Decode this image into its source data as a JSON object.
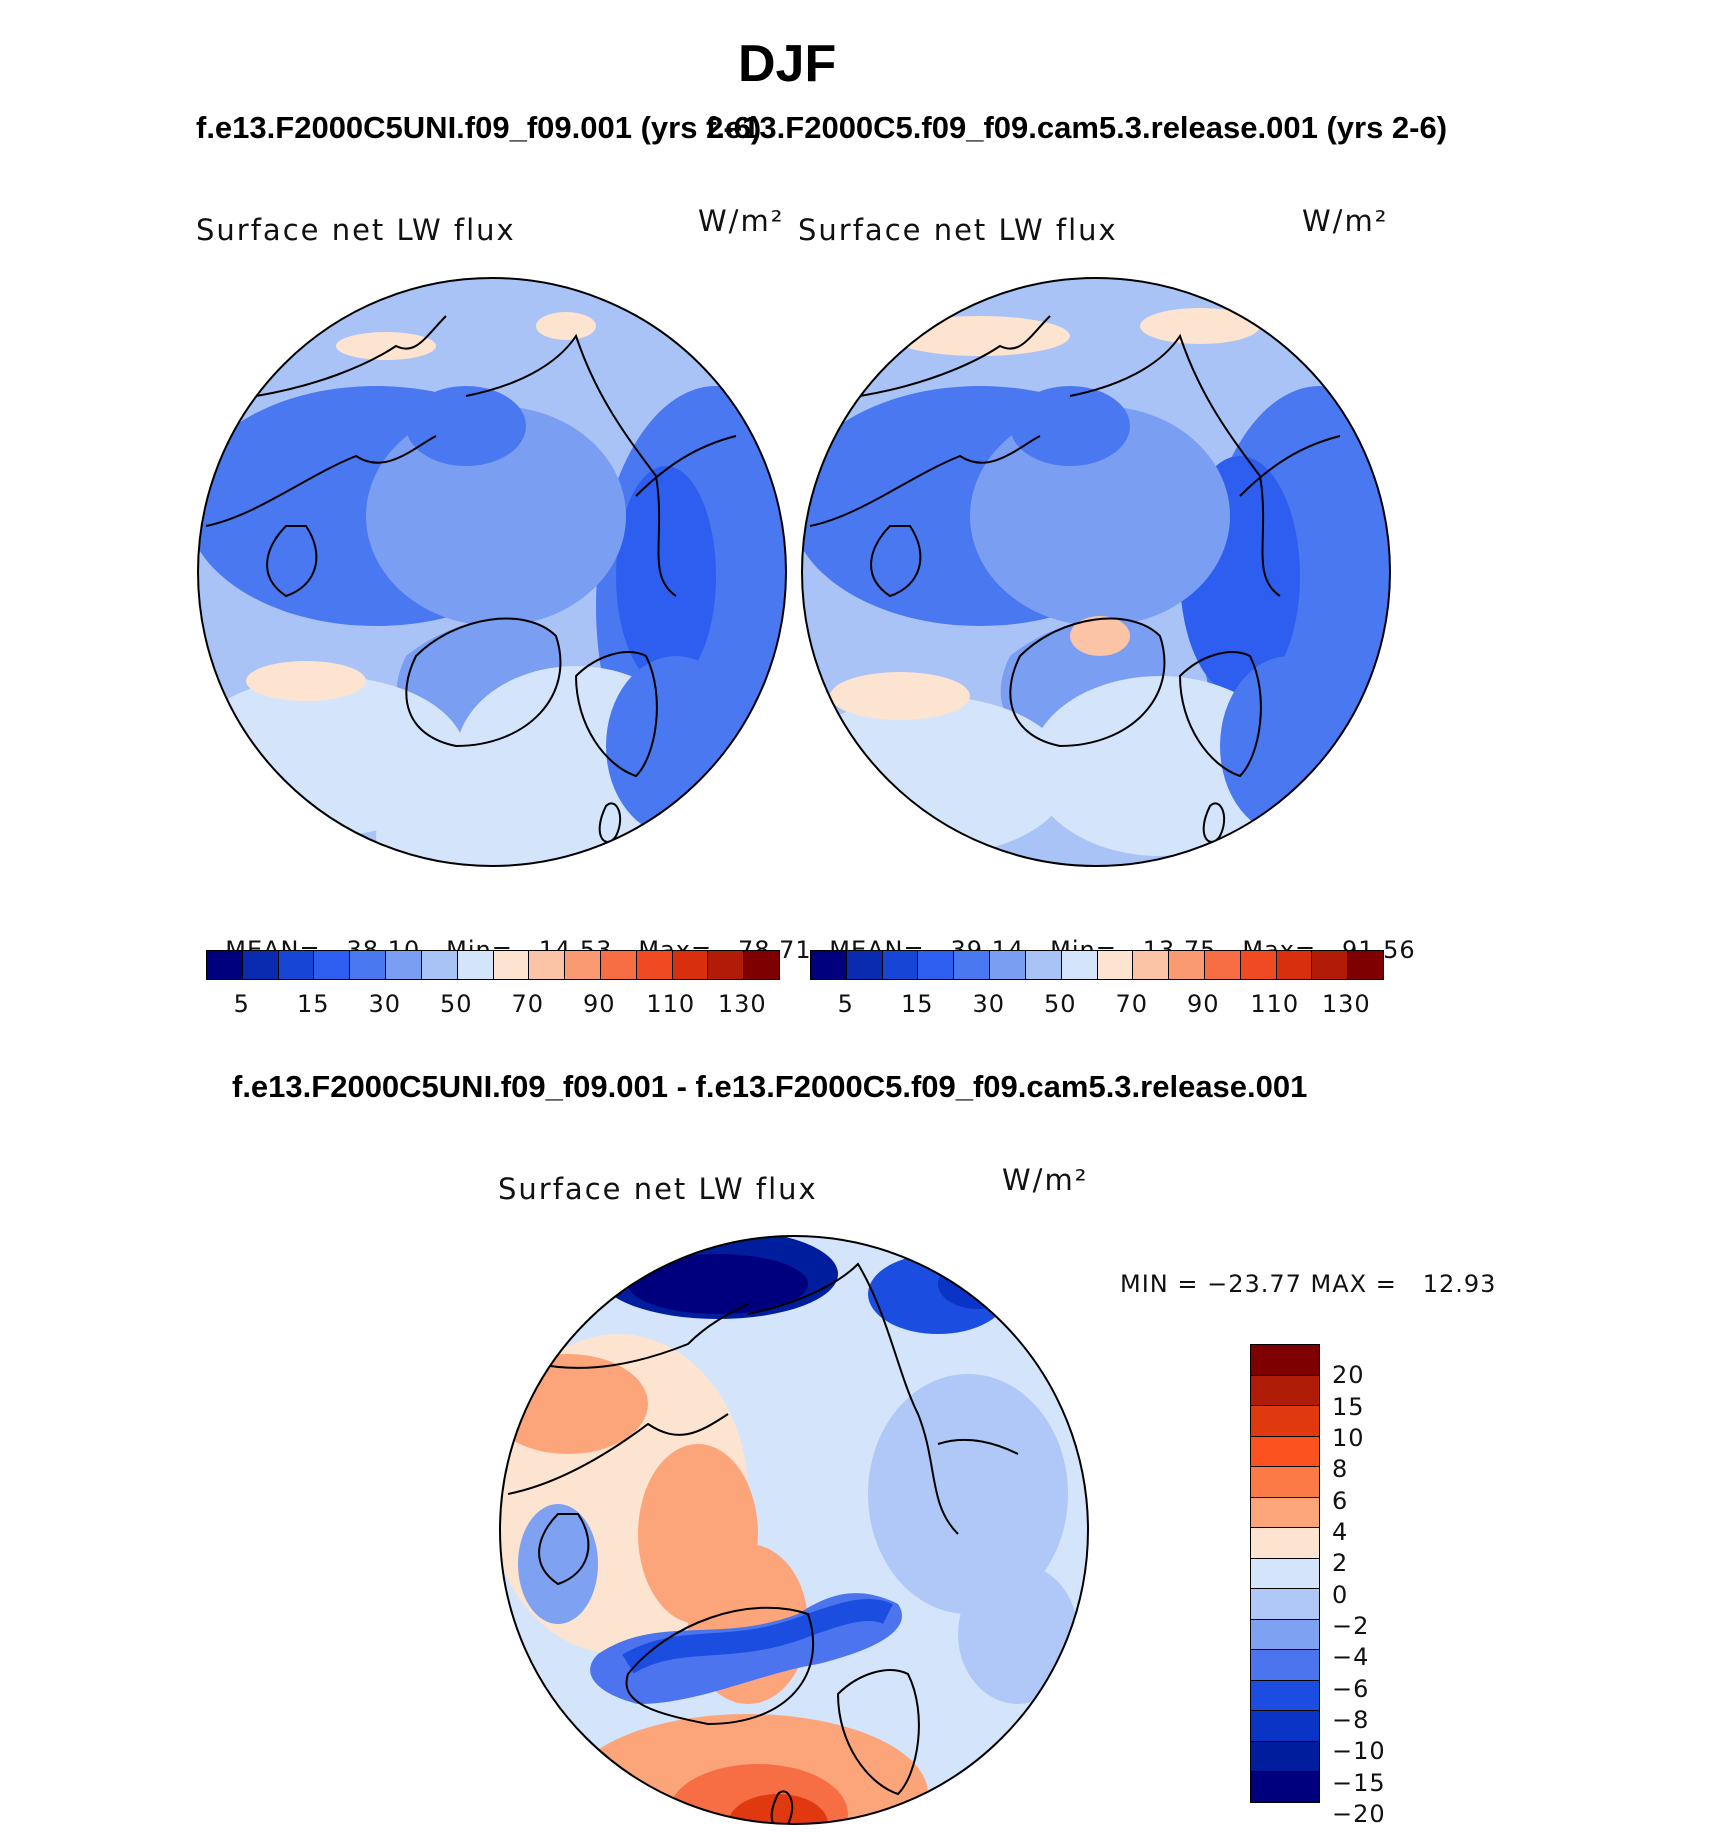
{
  "title": "DJF",
  "panels": [
    {
      "case_title": "f.e13.F2000C5UNI.f09_f09.001 (yrs 2-6)",
      "variable": "Surface net LW flux",
      "units": "W/m²",
      "mean_label": "MEAN=",
      "mean": "38.10",
      "min_label": "Min=",
      "min": "14.53",
      "max_label": "Max=",
      "max": "78.71"
    },
    {
      "case_title": "f.e13.F2000C5.f09_f09.cam5.3.release.001 (yrs 2-6)",
      "variable": "Surface net LW flux",
      "units": "W/m²",
      "mean_label": "MEAN=",
      "mean": "39.14",
      "min_label": "Min=",
      "min": "13.75",
      "max_label": "Max=",
      "max": "91.56"
    }
  ],
  "abs_colorbar": {
    "colors": [
      "#00007f",
      "#0a2ab0",
      "#1746d6",
      "#2e5ef0",
      "#4a78f0",
      "#7a9ef2",
      "#a9c3f7",
      "#d3e4fb",
      "#fde4d0",
      "#fcc4a6",
      "#f99a72",
      "#f76e45",
      "#f04a22",
      "#d8300e",
      "#b01c08",
      "#7f0000"
    ],
    "tick_labels": [
      "5",
      "15",
      "30",
      "50",
      "70",
      "90",
      "110",
      "130"
    ]
  },
  "diff": {
    "case_title": "f.e13.F2000C5UNI.f09_f09.001 - f.e13.F2000C5.f09_f09.cam5.3.release.001",
    "variable": "Surface net LW flux",
    "units": "W/m²",
    "minmax_text": "MIN = −23.77 MAX =   12.93",
    "colorbar": {
      "colors": [
        "#7f0000",
        "#b01c08",
        "#e0380f",
        "#fb5220",
        "#fc7a45",
        "#fca57a",
        "#fde4d0",
        "#d3e4fb",
        "#b0c8f8",
        "#7ea1f2",
        "#4c74ee",
        "#1b4ee0",
        "#0a34c6",
        "#001d9e",
        "#00007f"
      ],
      "tick_labels": [
        "20",
        "15",
        "10",
        "8",
        "6",
        "4",
        "2",
        "0",
        "−2",
        "−4",
        "−6",
        "−8",
        "−10",
        "−15",
        "−20"
      ]
    }
  }
}
